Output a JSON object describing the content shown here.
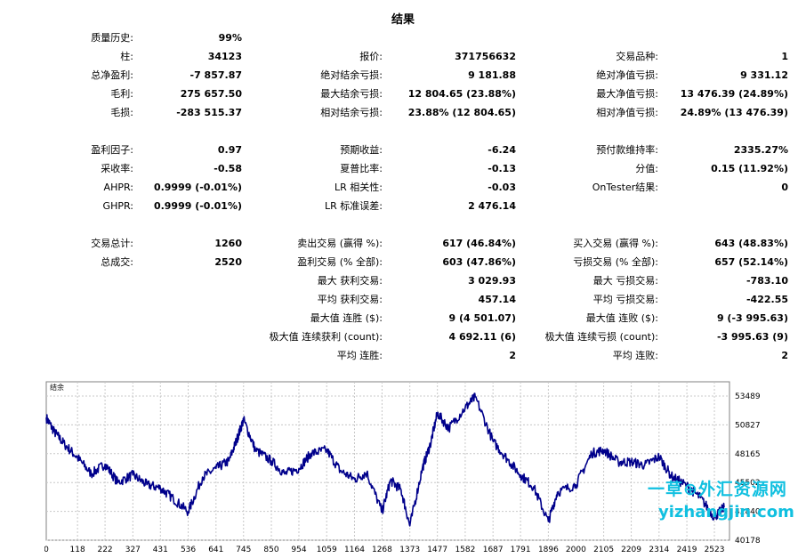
{
  "title": "结果",
  "stats": [
    {
      "id": "quality",
      "label": "质量历史:",
      "value": "99%",
      "col": 0,
      "row": 0
    },
    {
      "id": "bars",
      "label": "柱:",
      "value": "34123",
      "col": 0,
      "row": 1
    },
    {
      "id": "ticks",
      "label": "报价:",
      "value": "371756632",
      "col": 1,
      "row": 1
    },
    {
      "id": "symbols",
      "label": "交易品种:",
      "value": "1",
      "col": 2,
      "row": 1
    },
    {
      "id": "net_profit",
      "label": "总净盈利:",
      "value": "-7 857.87",
      "col": 0,
      "row": 2
    },
    {
      "id": "abs_dd_balance",
      "label": "绝对结余亏损:",
      "value": "9 181.88",
      "col": 1,
      "row": 2
    },
    {
      "id": "abs_dd_equity",
      "label": "绝对净值亏损:",
      "value": "9 331.12",
      "col": 2,
      "row": 2
    },
    {
      "id": "gross_profit",
      "label": "毛利:",
      "value": "275 657.50",
      "col": 0,
      "row": 3
    },
    {
      "id": "max_dd_balance",
      "label": "最大结余亏损:",
      "value": "12 804.65 (23.88%)",
      "col": 1,
      "row": 3
    },
    {
      "id": "max_dd_equity",
      "label": "最大净值亏损:",
      "value": "13 476.39 (24.89%)",
      "col": 2,
      "row": 3
    },
    {
      "id": "gross_loss",
      "label": "毛损:",
      "value": "-283 515.37",
      "col": 0,
      "row": 4
    },
    {
      "id": "rel_dd_balance",
      "label": "相对结余亏损:",
      "value": "23.88% (12 804.65)",
      "col": 1,
      "row": 4
    },
    {
      "id": "rel_dd_equity",
      "label": "相对净值亏损:",
      "value": "24.89% (13 476.39)",
      "col": 2,
      "row": 4
    },
    {
      "id": "profit_factor",
      "label": "盈利因子:",
      "value": "0.97",
      "col": 0,
      "row": 6
    },
    {
      "id": "expected_payoff",
      "label": "预期收益:",
      "value": "-6.24",
      "col": 1,
      "row": 6
    },
    {
      "id": "margin_level",
      "label": "预付款维持率:",
      "value": "2335.27%",
      "col": 2,
      "row": 6
    },
    {
      "id": "recovery_factor",
      "label": "采收率:",
      "value": "-0.58",
      "col": 0,
      "row": 7
    },
    {
      "id": "sharpe",
      "label": "夏普比率:",
      "value": "-0.13",
      "col": 1,
      "row": 7
    },
    {
      "id": "z_score",
      "label": "分值:",
      "value": "0.15 (11.92%)",
      "col": 2,
      "row": 7
    },
    {
      "id": "ahpr",
      "label": "AHPR:",
      "value": "0.9999 (-0.01%)",
      "col": 0,
      "row": 8
    },
    {
      "id": "lr_corr",
      "label": "LR 相关性:",
      "value": "-0.03",
      "col": 1,
      "row": 8
    },
    {
      "id": "ontester",
      "label": "OnTester结果:",
      "value": "0",
      "col": 2,
      "row": 8
    },
    {
      "id": "ghpr",
      "label": "GHPR:",
      "value": "0.9999 (-0.01%)",
      "col": 0,
      "row": 9
    },
    {
      "id": "lr_stderr",
      "label": "LR 标准误差:",
      "value": "2 476.14",
      "col": 1,
      "row": 9
    },
    {
      "id": "total_trades",
      "label": "交易总计:",
      "value": "1260",
      "col": 0,
      "row": 11
    },
    {
      "id": "short_trades",
      "label": "卖出交易 (赢得 %):",
      "value": "617 (46.84%)",
      "col": 1,
      "row": 11
    },
    {
      "id": "long_trades",
      "label": "买入交易 (赢得 %):",
      "value": "643 (48.83%)",
      "col": 2,
      "row": 11
    },
    {
      "id": "total_deals",
      "label": "总成交:",
      "value": "2520",
      "col": 0,
      "row": 12
    },
    {
      "id": "profit_trades",
      "label": "盈利交易 (% 全部):",
      "value": "603 (47.86%)",
      "col": 1,
      "row": 12
    },
    {
      "id": "loss_trades",
      "label": "亏损交易 (% 全部):",
      "value": "657 (52.14%)",
      "col": 2,
      "row": 12
    },
    {
      "id": "largest_profit",
      "label": "最大 获利交易:",
      "value": "3 029.93",
      "col": 1,
      "row": 13
    },
    {
      "id": "largest_loss",
      "label": "最大 亏损交易:",
      "value": "-783.10",
      "col": 2,
      "row": 13
    },
    {
      "id": "avg_profit",
      "label": "平均 获利交易:",
      "value": "457.14",
      "col": 1,
      "row": 14
    },
    {
      "id": "avg_loss",
      "label": "平均 亏损交易:",
      "value": "-422.55",
      "col": 2,
      "row": 14
    },
    {
      "id": "max_consec_wins",
      "label": "最大值 连胜 ($):",
      "value": "9 (4 501.07)",
      "col": 1,
      "row": 15
    },
    {
      "id": "max_consec_losses",
      "label": "最大值 连败 ($):",
      "value": "9 (-3 995.63)",
      "col": 2,
      "row": 15
    },
    {
      "id": "maximal_consec_profit",
      "label": "极大值 连续获利 (count):",
      "value": "4 692.11 (6)",
      "col": 1,
      "row": 16
    },
    {
      "id": "maximal_consec_loss",
      "label": "极大值 连续亏损 (count):",
      "value": "-3 995.63 (9)",
      "col": 2,
      "row": 16
    },
    {
      "id": "avg_consec_wins",
      "label": "平均 连胜:",
      "value": "2",
      "col": 1,
      "row": 17
    },
    {
      "id": "avg_consec_losses",
      "label": "平均 连败:",
      "value": "2",
      "col": 2,
      "row": 17
    }
  ],
  "chart_data": {
    "type": "line",
    "title": "结余",
    "xlabel": "",
    "ylabel": "",
    "x_ticks": [
      0,
      118,
      222,
      327,
      431,
      536,
      641,
      745,
      850,
      954,
      1059,
      1164,
      1268,
      1373,
      1477,
      1582,
      1687,
      1791,
      1896,
      2000,
      2105,
      2209,
      2314,
      2419,
      2523
    ],
    "y_ticks": [
      40178,
      42840,
      45502,
      48165,
      50827,
      53489
    ],
    "xlim": [
      0,
      2580
    ],
    "ylim": [
      40178,
      54800
    ],
    "grid": true,
    "series": [
      {
        "name": "结余",
        "color": "#00008b",
        "x": [
          0,
          30,
          70,
          118,
          170,
          222,
          270,
          327,
          380,
          431,
          480,
          536,
          590,
          641,
          690,
          720,
          745,
          790,
          850,
          900,
          954,
          1000,
          1059,
          1110,
          1164,
          1210,
          1268,
          1300,
          1340,
          1373,
          1420,
          1450,
          1477,
          1520,
          1582,
          1620,
          1687,
          1740,
          1791,
          1840,
          1896,
          1930,
          2000,
          2060,
          2105,
          2160,
          2209,
          2260,
          2314,
          2360,
          2419,
          2470,
          2523,
          2560
        ],
        "values": [
          51500,
          50200,
          49000,
          47800,
          46300,
          47200,
          45500,
          46200,
          45300,
          45000,
          44000,
          42800,
          46000,
          46800,
          47500,
          49500,
          51300,
          48500,
          47500,
          46300,
          46800,
          48200,
          48500,
          46600,
          45800,
          46400,
          42800,
          45700,
          44800,
          41500,
          46800,
          49000,
          51900,
          50500,
          52400,
          53400,
          49300,
          47700,
          46200,
          45100,
          41900,
          44600,
          45300,
          48200,
          48500,
          47400,
          47400,
          47100,
          47900,
          46100,
          45200,
          44100,
          42300,
          43200
        ]
      }
    ]
  },
  "watermark": {
    "line1": "一草⊕外汇资源网",
    "line2": "yizhangjin.com"
  }
}
